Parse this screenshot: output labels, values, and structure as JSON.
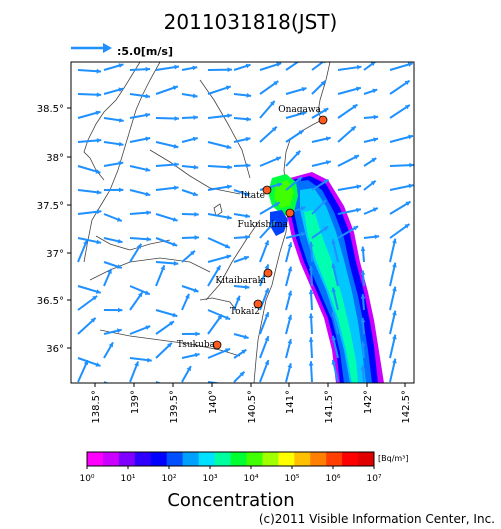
{
  "title": "2011031818(JST)",
  "reference_arrow": {
    "label": ":5.0[m/s]",
    "speed_ms": 5.0
  },
  "map": {
    "lon_range": [
      138.3,
      142.6
    ],
    "lat_range": [
      35.6,
      39.0
    ],
    "lon_ticks": [
      "138.5°",
      "139°",
      "139.5°",
      "140°",
      "140.5°",
      "141°",
      "141.5°",
      "142°",
      "142.5°"
    ],
    "lat_ticks": [
      "38.5°",
      "38°",
      "37.5°",
      "37°",
      "36.5°",
      "36°"
    ],
    "locations": [
      {
        "name": "Onagawa"
      },
      {
        "name": "Iitate"
      },
      {
        "name": "Fukushima"
      },
      {
        "name": "Kitaibaraki"
      },
      {
        "name": "Tokai2"
      },
      {
        "name": "Tsukuba"
      }
    ]
  },
  "colorbar": {
    "title": "Concentration",
    "unit": "[Bq/m³]",
    "tick_labels": [
      "10⁰",
      "10¹",
      "10²",
      "10³",
      "10⁴",
      "10⁵",
      "10⁶",
      "10⁷"
    ],
    "colors": [
      "#ff00ff",
      "#cc00ff",
      "#8000ff",
      "#3000ff",
      "#0000ff",
      "#0050ff",
      "#00a0ff",
      "#00e0ff",
      "#00ffa0",
      "#00ff30",
      "#40ff00",
      "#a0ff00",
      "#ffff00",
      "#ffc000",
      "#ff8000",
      "#ff4000",
      "#ff0000",
      "#e00000"
    ]
  },
  "copyright": "(c)2011 Visible Information Center, Inc."
}
